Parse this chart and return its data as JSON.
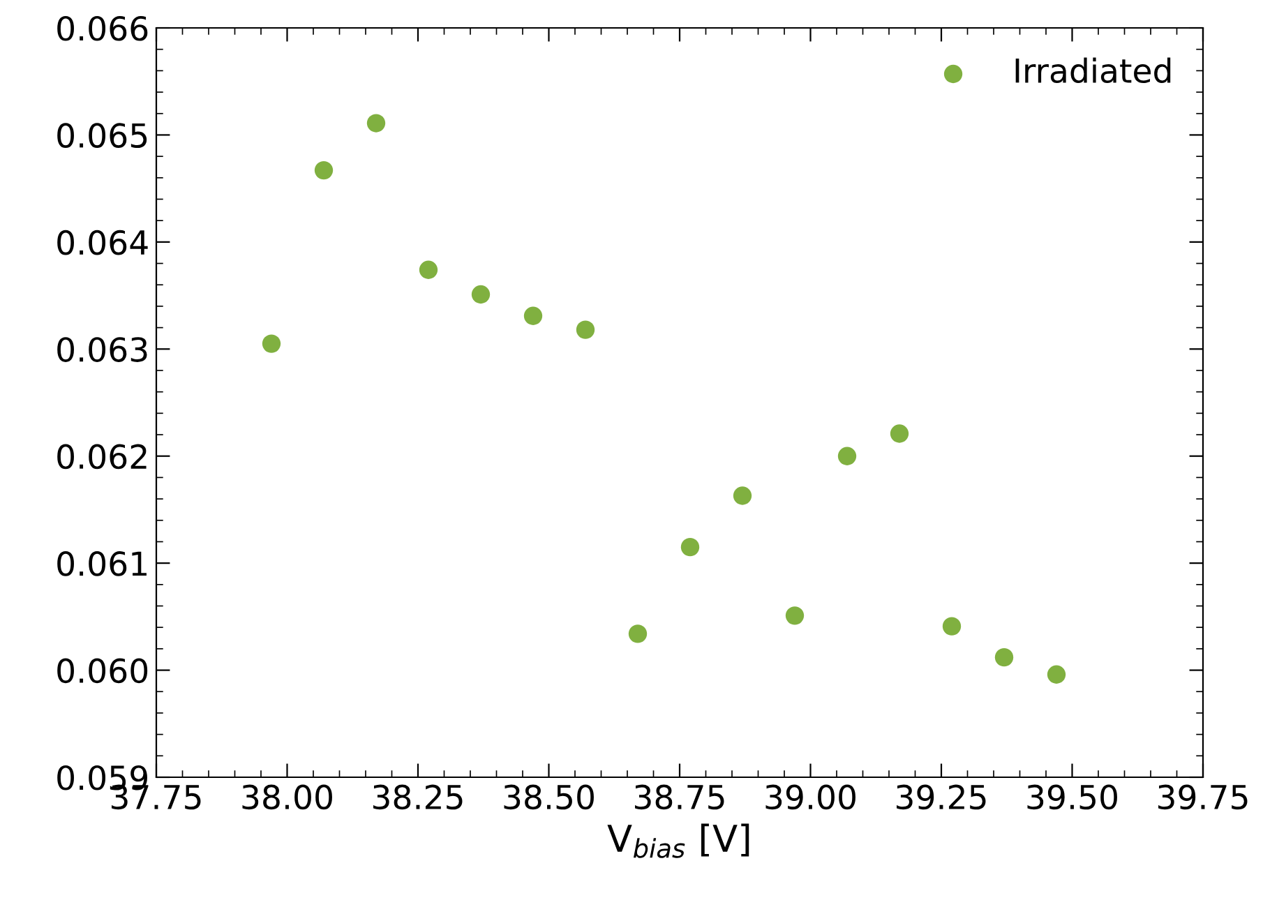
{
  "chart_data": {
    "type": "scatter",
    "xlabel": "V$_{bias}$ [V]",
    "x": [
      37.97,
      38.07,
      38.17,
      38.27,
      38.37,
      38.47,
      38.57,
      38.67,
      38.77,
      38.87,
      38.97,
      39.07,
      39.17,
      39.27,
      39.37,
      39.47
    ],
    "series": [
      {
        "name": "Irradiated",
        "color": "#80b040",
        "values": [
          0.06305,
          0.06467,
          0.06511,
          0.06374,
          0.06351,
          0.06331,
          0.06318,
          0.06034,
          0.06115,
          0.06163,
          0.06051,
          0.062,
          0.06221,
          0.06041,
          0.06012,
          0.05996
        ]
      }
    ],
    "xlim": [
      37.75,
      39.75
    ],
    "xticks": [
      {
        "value": 37.75,
        "label": "37.75"
      },
      {
        "value": 38.0,
        "label": "38.00"
      },
      {
        "value": 38.25,
        "label": "38.25"
      },
      {
        "value": 38.5,
        "label": "38.50"
      },
      {
        "value": 38.75,
        "label": "38.75"
      },
      {
        "value": 39.0,
        "label": "39.00"
      },
      {
        "value": 39.25,
        "label": "39.25"
      },
      {
        "value": 39.5,
        "label": "39.50"
      },
      {
        "value": 39.75,
        "label": "39.75"
      }
    ],
    "ylim": [
      0.059,
      0.066
    ],
    "yticks": [
      {
        "value": 0.059,
        "label": "0.059"
      },
      {
        "value": 0.06,
        "label": "0.060"
      },
      {
        "value": 0.061,
        "label": "0.061"
      },
      {
        "value": 0.062,
        "label": "0.062"
      },
      {
        "value": 0.063,
        "label": "0.063"
      },
      {
        "value": 0.064,
        "label": "0.064"
      },
      {
        "value": 0.065,
        "label": "0.065"
      },
      {
        "value": 0.066,
        "label": "0.066"
      }
    ],
    "legend": "top right",
    "marker": "circle",
    "grid": false
  }
}
